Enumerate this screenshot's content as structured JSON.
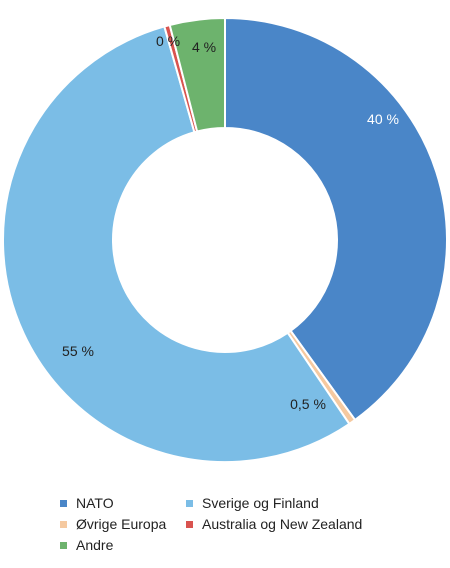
{
  "chart_data": {
    "type": "pie",
    "variant": "donut",
    "title": "",
    "series": [
      {
        "name": "NATO",
        "value": 40,
        "label": "40 %",
        "color": "#4A86C8"
      },
      {
        "name": "Øvrige Europa",
        "value": 0.5,
        "label": "0,5 %",
        "color": "#F5C9A0"
      },
      {
        "name": "Sverige og Finland",
        "value": 55,
        "label": "55 %",
        "color": "#7BBDE6"
      },
      {
        "name": "Australia og New Zealand",
        "value": 0.4,
        "label": "0 %",
        "color": "#D9534F"
      },
      {
        "name": "Andre",
        "value": 4,
        "label": "4 %",
        "color": "#6DB36D"
      }
    ],
    "legend_placement": "bottom"
  }
}
